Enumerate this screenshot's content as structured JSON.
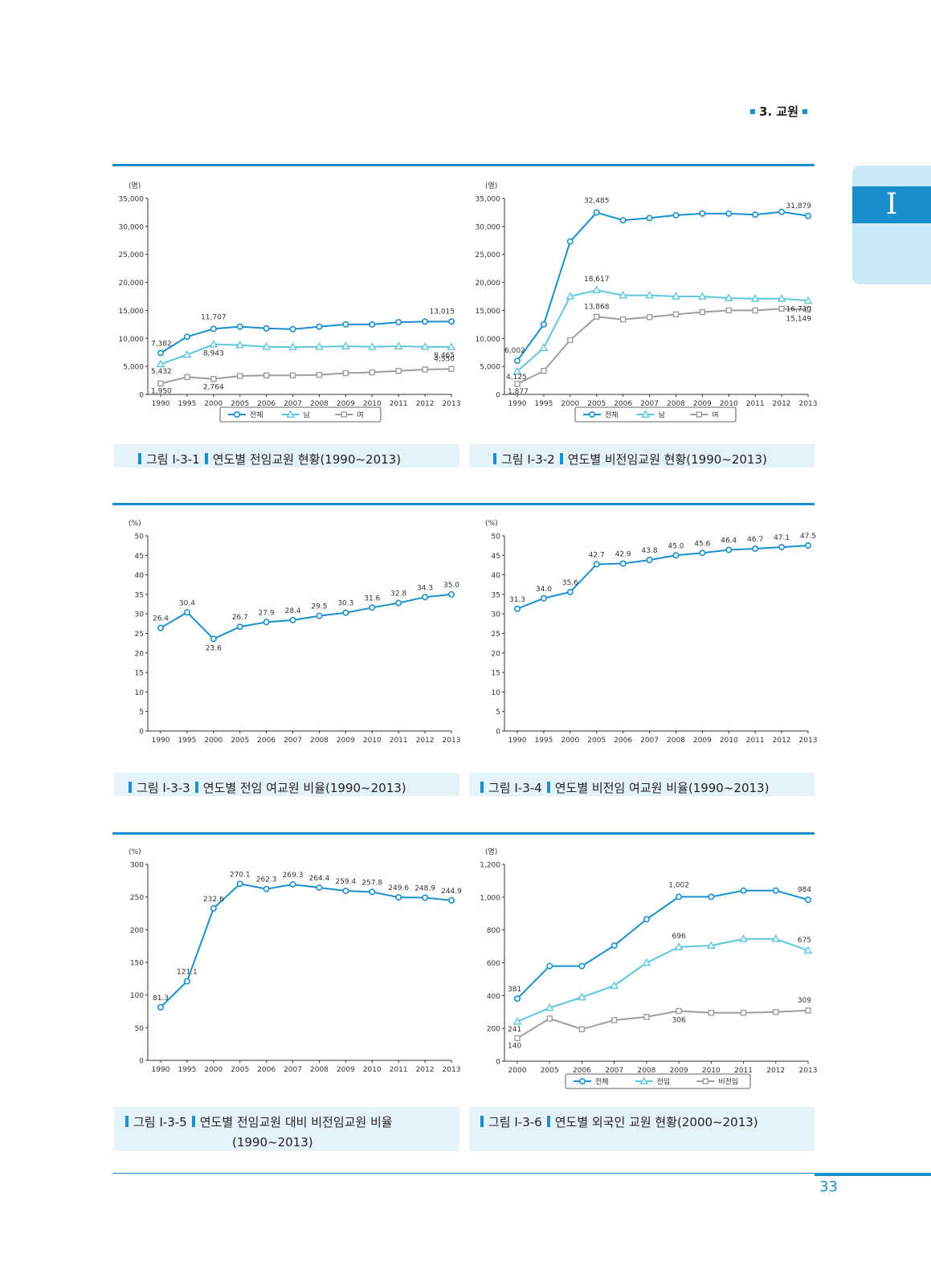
{
  "header": {
    "section": "3. 교원",
    "tab_label": "I"
  },
  "page_number": "33",
  "colors": {
    "accent": "#1a8fd0",
    "series1": "#1a8fd0",
    "series2": "#5fc7dc",
    "series3": "#9d9d9d",
    "caption_bg": "#e4f2fa"
  },
  "captions": [
    {
      "fig": "그림 Ⅰ-3-1",
      "text": "연도별 전임교원 현황(1990~2013)"
    },
    {
      "fig": "그림 Ⅰ-3-2",
      "text": "연도별 비전임교원 현황(1990~2013)"
    },
    {
      "fig": "그림 Ⅰ-3-3",
      "text": "연도별 전임 여교원 비율(1990~2013)"
    },
    {
      "fig": "그림 Ⅰ-3-4",
      "text": "연도별 비전임 여교원 비율(1990~2013)"
    },
    {
      "fig": "그림 Ⅰ-3-5",
      "text": "연도별 전임교원 대비 비전임교원 비율",
      "text2": "(1990~2013)"
    },
    {
      "fig": "그림 Ⅰ-3-6",
      "text": "연도별 외국인 교원 현황(2000~2013)"
    }
  ],
  "chart_data": [
    {
      "type": "line",
      "unit": "(명)",
      "x": [
        "1990",
        "1995",
        "2000",
        "2005",
        "2006",
        "2007",
        "2008",
        "2009",
        "2010",
        "2011",
        "2012",
        "2013"
      ],
      "ylim": [
        0,
        35000
      ],
      "yticks": [
        "0",
        "5,000",
        "10,000",
        "15,000",
        "20,000",
        "25,000",
        "30,000",
        "35,000"
      ],
      "legend": "bottom",
      "series": [
        {
          "name": "전체",
          "marker": "circle",
          "values": [
            7382,
            10300,
            11707,
            12100,
            11800,
            11650,
            12100,
            12500,
            12500,
            12900,
            13000,
            13015
          ]
        },
        {
          "name": "남",
          "marker": "triangle",
          "values": [
            5432,
            7100,
            8943,
            8800,
            8500,
            8450,
            8500,
            8600,
            8500,
            8600,
            8500,
            8465
          ]
        },
        {
          "name": "여",
          "marker": "square",
          "values": [
            1950,
            3100,
            2764,
            3300,
            3400,
            3400,
            3500,
            3800,
            3950,
            4200,
            4450,
            4550
          ]
        }
      ],
      "labels": [
        {
          "s": 0,
          "i": 0,
          "text": "7,382"
        },
        {
          "s": 0,
          "i": 2,
          "text": "11,707"
        },
        {
          "s": 0,
          "i": 11,
          "text": "13,015"
        },
        {
          "s": 1,
          "i": 0,
          "text": "5,432"
        },
        {
          "s": 1,
          "i": 2,
          "text": "8,943"
        },
        {
          "s": 1,
          "i": 11,
          "text": "8,465"
        },
        {
          "s": 2,
          "i": 0,
          "text": "1,950"
        },
        {
          "s": 2,
          "i": 2,
          "text": "2,764"
        },
        {
          "s": 2,
          "i": 11,
          "text": "4,550"
        }
      ]
    },
    {
      "type": "line",
      "unit": "(명)",
      "x": [
        "1990",
        "1995",
        "2000",
        "2005",
        "2006",
        "2007",
        "2008",
        "2009",
        "2010",
        "2011",
        "2012",
        "2013"
      ],
      "ylim": [
        0,
        35000
      ],
      "yticks": [
        "0",
        "5,000",
        "10,000",
        "15,000",
        "20,000",
        "25,000",
        "30,000",
        "35,000"
      ],
      "legend": "bottom",
      "series": [
        {
          "name": "전체",
          "marker": "circle",
          "values": [
            6002,
            12500,
            27300,
            32485,
            31100,
            31500,
            32000,
            32300,
            32300,
            32100,
            32600,
            31879
          ]
        },
        {
          "name": "남",
          "marker": "triangle",
          "values": [
            4125,
            8300,
            17500,
            18617,
            17700,
            17700,
            17500,
            17500,
            17200,
            17100,
            17100,
            16730
          ]
        },
        {
          "name": "여",
          "marker": "square",
          "values": [
            1877,
            4200,
            9700,
            13868,
            13400,
            13800,
            14300,
            14700,
            15000,
            15000,
            15300,
            15149
          ]
        }
      ],
      "labels": [
        {
          "s": 0,
          "i": 0,
          "text": "6,002"
        },
        {
          "s": 0,
          "i": 3,
          "text": "32,485"
        },
        {
          "s": 0,
          "i": 11,
          "text": "31,879"
        },
        {
          "s": 1,
          "i": 0,
          "text": "4,125"
        },
        {
          "s": 1,
          "i": 3,
          "text": "18,617"
        },
        {
          "s": 1,
          "i": 11,
          "text": "16,730"
        },
        {
          "s": 2,
          "i": 0,
          "text": "1,877"
        },
        {
          "s": 2,
          "i": 3,
          "text": "13,868"
        },
        {
          "s": 2,
          "i": 11,
          "text": "15,149"
        }
      ]
    },
    {
      "type": "line",
      "unit": "(%)",
      "x": [
        "1990",
        "1995",
        "2000",
        "2005",
        "2006",
        "2007",
        "2008",
        "2009",
        "2010",
        "2011",
        "2012",
        "2013"
      ],
      "ylim": [
        0,
        50
      ],
      "yticks": [
        "0",
        "5",
        "10",
        "15",
        "20",
        "25",
        "30",
        "35",
        "40",
        "45",
        "50"
      ],
      "series": [
        {
          "name": "",
          "marker": "circle",
          "values": [
            26.4,
            30.4,
            23.6,
            26.7,
            27.9,
            28.4,
            29.5,
            30.3,
            31.6,
            32.8,
            34.3,
            35.0
          ]
        }
      ],
      "labels": [
        {
          "s": 0,
          "i": 0,
          "text": "26.4"
        },
        {
          "s": 0,
          "i": 1,
          "text": "30.4"
        },
        {
          "s": 0,
          "i": 2,
          "text": "23.6"
        },
        {
          "s": 0,
          "i": 3,
          "text": "26.7"
        },
        {
          "s": 0,
          "i": 4,
          "text": "27.9"
        },
        {
          "s": 0,
          "i": 5,
          "text": "28.4"
        },
        {
          "s": 0,
          "i": 6,
          "text": "29.5"
        },
        {
          "s": 0,
          "i": 7,
          "text": "30.3"
        },
        {
          "s": 0,
          "i": 8,
          "text": "31.6"
        },
        {
          "s": 0,
          "i": 9,
          "text": "32.8"
        },
        {
          "s": 0,
          "i": 10,
          "text": "34.3"
        },
        {
          "s": 0,
          "i": 11,
          "text": "35.0"
        }
      ]
    },
    {
      "type": "line",
      "unit": "(%)",
      "x": [
        "1990",
        "1995",
        "2000",
        "2005",
        "2006",
        "2007",
        "2008",
        "2009",
        "2010",
        "2011",
        "2012",
        "2013"
      ],
      "ylim": [
        0,
        50
      ],
      "yticks": [
        "0",
        "5",
        "10",
        "15",
        "20",
        "25",
        "30",
        "35",
        "40",
        "45",
        "50"
      ],
      "series": [
        {
          "name": "",
          "marker": "circle",
          "values": [
            31.3,
            34.0,
            35.6,
            42.7,
            42.9,
            43.8,
            45.0,
            45.6,
            46.4,
            46.7,
            47.1,
            47.5
          ]
        }
      ],
      "labels": [
        {
          "s": 0,
          "i": 0,
          "text": "31.3"
        },
        {
          "s": 0,
          "i": 1,
          "text": "34.0"
        },
        {
          "s": 0,
          "i": 2,
          "text": "35.6"
        },
        {
          "s": 0,
          "i": 3,
          "text": "42.7"
        },
        {
          "s": 0,
          "i": 4,
          "text": "42.9"
        },
        {
          "s": 0,
          "i": 5,
          "text": "43.8"
        },
        {
          "s": 0,
          "i": 6,
          "text": "45.0"
        },
        {
          "s": 0,
          "i": 7,
          "text": "45.6"
        },
        {
          "s": 0,
          "i": 8,
          "text": "46.4"
        },
        {
          "s": 0,
          "i": 9,
          "text": "46.7"
        },
        {
          "s": 0,
          "i": 10,
          "text": "47.1"
        },
        {
          "s": 0,
          "i": 11,
          "text": "47.5"
        }
      ]
    },
    {
      "type": "line",
      "unit": "(%)",
      "x": [
        "1990",
        "1995",
        "2000",
        "2005",
        "2006",
        "2007",
        "2008",
        "2009",
        "2010",
        "2011",
        "2012",
        "2013"
      ],
      "ylim": [
        0,
        300
      ],
      "yticks": [
        "0",
        "50",
        "100",
        "150",
        "200",
        "250",
        "300"
      ],
      "series": [
        {
          "name": "",
          "marker": "circle",
          "values": [
            81.3,
            121.1,
            232.6,
            270.1,
            262.3,
            269.3,
            264.4,
            259.4,
            257.8,
            249.6,
            248.9,
            244.9
          ]
        }
      ],
      "labels": [
        {
          "s": 0,
          "i": 0,
          "text": "81.3"
        },
        {
          "s": 0,
          "i": 1,
          "text": "121.1"
        },
        {
          "s": 0,
          "i": 2,
          "text": "232.6"
        },
        {
          "s": 0,
          "i": 3,
          "text": "270.1"
        },
        {
          "s": 0,
          "i": 4,
          "text": "262.3"
        },
        {
          "s": 0,
          "i": 5,
          "text": "269.3"
        },
        {
          "s": 0,
          "i": 6,
          "text": "264.4"
        },
        {
          "s": 0,
          "i": 7,
          "text": "259.4"
        },
        {
          "s": 0,
          "i": 8,
          "text": "257.8"
        },
        {
          "s": 0,
          "i": 9,
          "text": "249.6"
        },
        {
          "s": 0,
          "i": 10,
          "text": "248.9"
        },
        {
          "s": 0,
          "i": 11,
          "text": "244.9"
        }
      ]
    },
    {
      "type": "line",
      "unit": "(명)",
      "x": [
        "2000",
        "2005",
        "2006",
        "2007",
        "2008",
        "2009",
        "2010",
        "2011",
        "2012",
        "2013"
      ],
      "ylim": [
        0,
        1200
      ],
      "yticks": [
        "0",
        "200",
        "400",
        "600",
        "800",
        "1,000",
        "1,200"
      ],
      "legend": "bottom",
      "series": [
        {
          "name": "전체",
          "marker": "circle",
          "values": [
            381,
            580,
            580,
            705,
            865,
            1002,
            1002,
            1040,
            1040,
            984
          ]
        },
        {
          "name": "전임",
          "marker": "triangle",
          "values": [
            241,
            325,
            390,
            460,
            600,
            696,
            705,
            745,
            745,
            675
          ]
        },
        {
          "name": "비전임",
          "marker": "square",
          "values": [
            140,
            260,
            195,
            250,
            270,
            306,
            295,
            295,
            300,
            309
          ]
        }
      ],
      "labels": [
        {
          "s": 0,
          "i": 0,
          "text": "381"
        },
        {
          "s": 0,
          "i": 5,
          "text": "1,002"
        },
        {
          "s": 0,
          "i": 9,
          "text": "984"
        },
        {
          "s": 1,
          "i": 0,
          "text": "241"
        },
        {
          "s": 1,
          "i": 5,
          "text": "696"
        },
        {
          "s": 1,
          "i": 9,
          "text": "675"
        },
        {
          "s": 2,
          "i": 0,
          "text": "140"
        },
        {
          "s": 2,
          "i": 5,
          "text": "306"
        },
        {
          "s": 2,
          "i": 9,
          "text": "309"
        }
      ]
    }
  ]
}
